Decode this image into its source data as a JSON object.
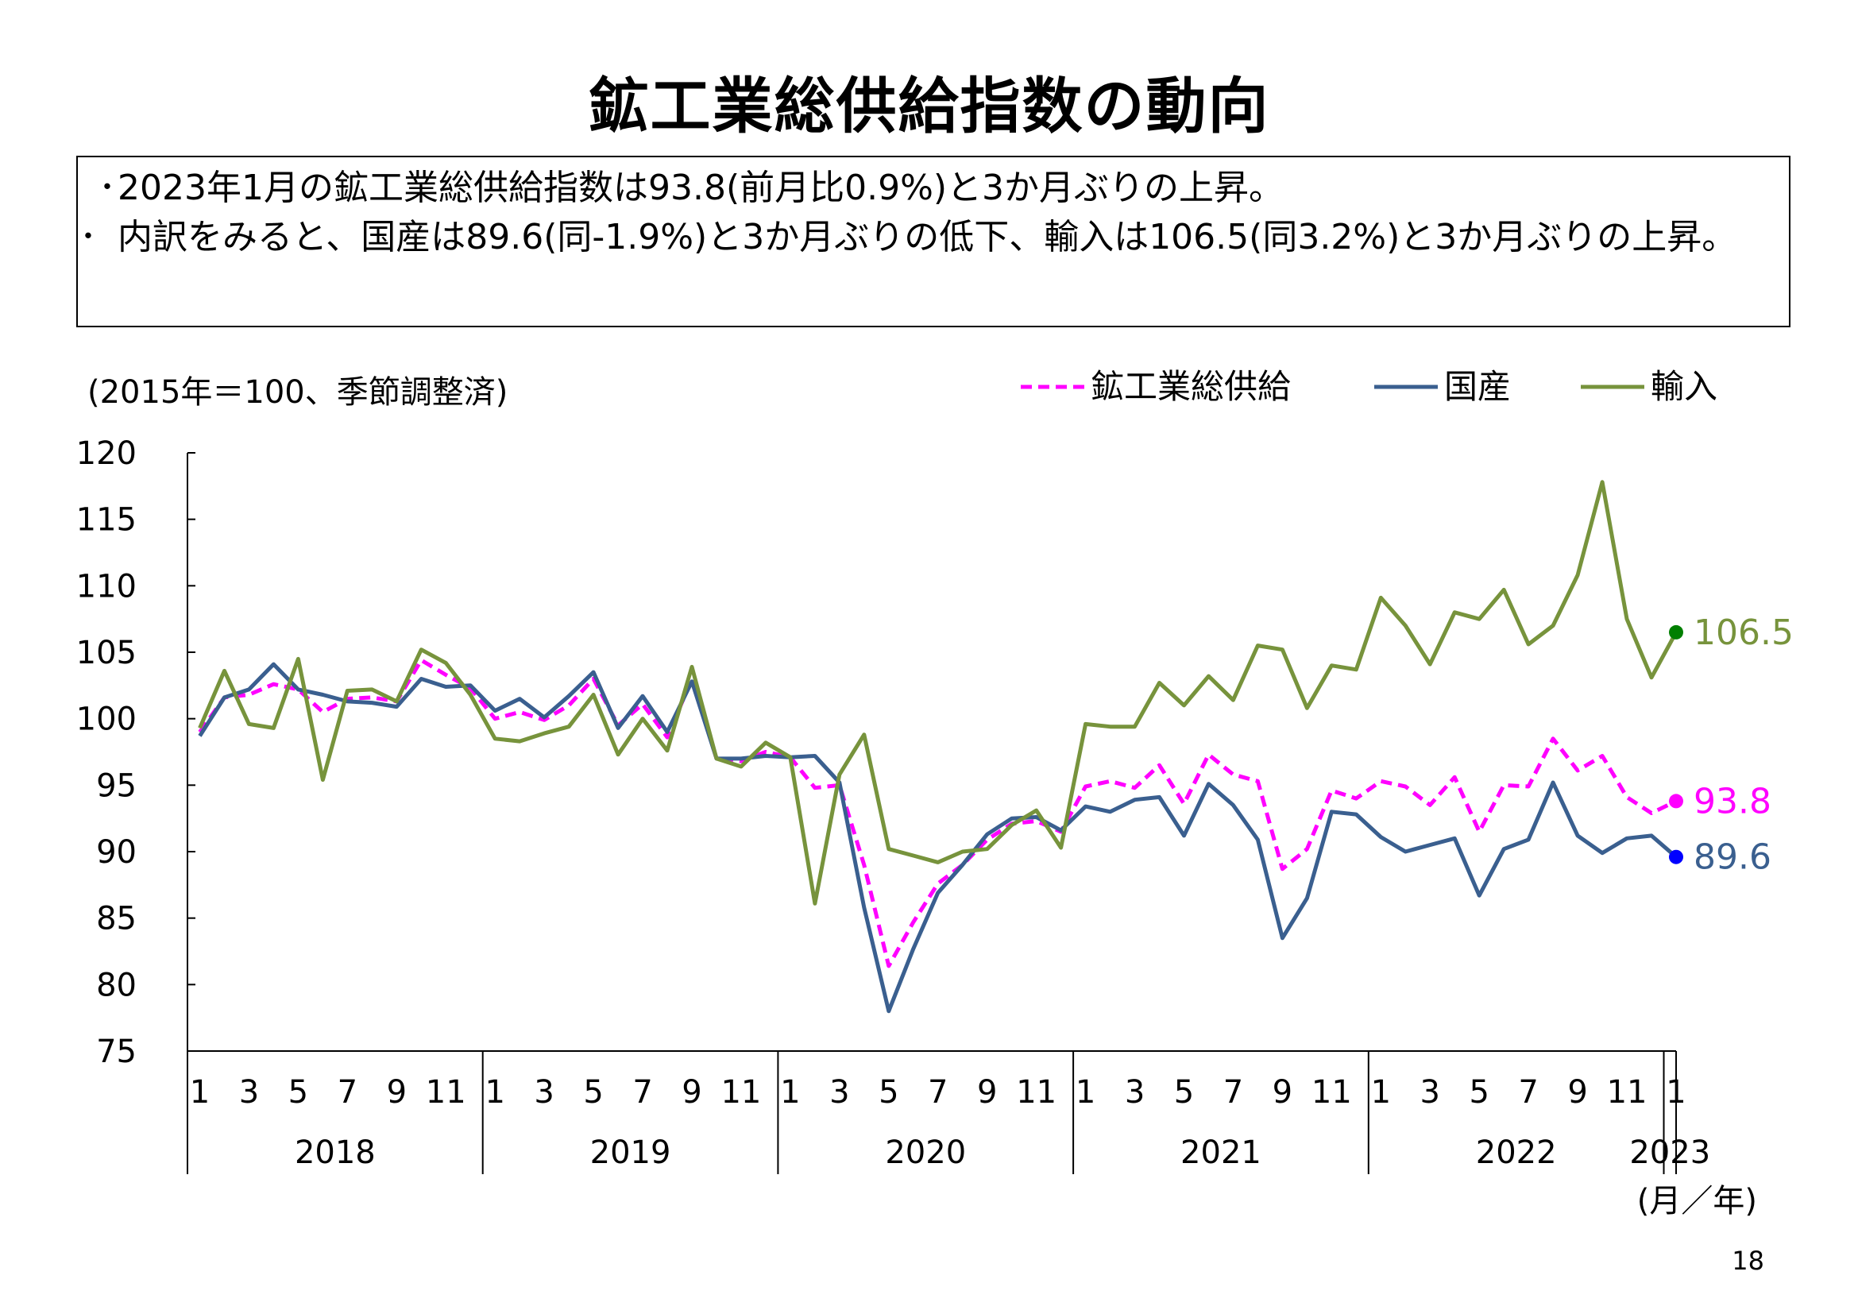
{
  "title": "鉱工業総供給指数の動向",
  "summary": [
    "2023年1月の鉱工業総供給指数は93.8(前月比0.9%)と3か月ぶりの上昇。",
    "内訳をみると、国産は89.6(同-1.9%)と3か月ぶりの低下、輸入は106.5(同3.2%)と3か月ぶりの上昇。"
  ],
  "page_number": "18",
  "chart_data": {
    "type": "line",
    "unit_note": "(2015年＝100、季節調整済)",
    "x_unit_label": "(月／年)",
    "ylim": [
      75,
      120
    ],
    "yticks": [
      75,
      80,
      85,
      90,
      95,
      100,
      105,
      110,
      115,
      120
    ],
    "grid": false,
    "legend_position": "top-right",
    "month_labels": [
      "1",
      "3",
      "5",
      "7",
      "9",
      "11"
    ],
    "years": [
      "2018",
      "2019",
      "2020",
      "2021",
      "2022",
      "2023"
    ],
    "x": [
      "2018-01",
      "2018-02",
      "2018-03",
      "2018-04",
      "2018-05",
      "2018-06",
      "2018-07",
      "2018-08",
      "2018-09",
      "2018-10",
      "2018-11",
      "2018-12",
      "2019-01",
      "2019-02",
      "2019-03",
      "2019-04",
      "2019-05",
      "2019-06",
      "2019-07",
      "2019-08",
      "2019-09",
      "2019-10",
      "2019-11",
      "2019-12",
      "2020-01",
      "2020-02",
      "2020-03",
      "2020-04",
      "2020-05",
      "2020-06",
      "2020-07",
      "2020-08",
      "2020-09",
      "2020-10",
      "2020-11",
      "2020-12",
      "2021-01",
      "2021-02",
      "2021-03",
      "2021-04",
      "2021-05",
      "2021-06",
      "2021-07",
      "2021-08",
      "2021-09",
      "2021-10",
      "2021-11",
      "2021-12",
      "2022-01",
      "2022-02",
      "2022-03",
      "2022-04",
      "2022-05",
      "2022-06",
      "2022-07",
      "2022-08",
      "2022-09",
      "2022-10",
      "2022-11",
      "2022-12",
      "2023-01"
    ],
    "series": [
      {
        "name": "鉱工業総供給",
        "color": "#ff00ff",
        "dash": true,
        "end_label": "93.8",
        "values": [
          99.0,
          101.6,
          101.8,
          102.6,
          102.2,
          100.5,
          101.5,
          101.6,
          101.3,
          104.4,
          103.3,
          102.3,
          100.0,
          100.5,
          99.9,
          101.0,
          103.0,
          99.5,
          101.1,
          98.6,
          103.0,
          97.0,
          96.8,
          97.5,
          97.1,
          94.8,
          95.0,
          89.0,
          81.4,
          84.7,
          87.6,
          89.0,
          90.9,
          92.1,
          92.3,
          91.5,
          94.9,
          95.3,
          94.8,
          96.5,
          93.6,
          97.3,
          95.8,
          95.3,
          88.7,
          90.2,
          94.6,
          94.0,
          95.3,
          94.9,
          93.5,
          95.6,
          91.5,
          95.0,
          94.9,
          98.5,
          96.1,
          97.2,
          94.1,
          92.9,
          93.8
        ]
      },
      {
        "name": "国産",
        "color": "#3a5f8f",
        "dash": false,
        "marker_color": "#0000ff",
        "end_label": "89.6",
        "values": [
          98.7,
          101.6,
          102.2,
          104.1,
          102.2,
          101.8,
          101.3,
          101.2,
          100.9,
          103.0,
          102.4,
          102.5,
          100.6,
          101.5,
          100.1,
          101.7,
          103.5,
          99.3,
          101.7,
          99.0,
          102.8,
          97.0,
          97.0,
          97.2,
          97.1,
          97.2,
          95.2,
          85.8,
          78.0,
          82.7,
          86.9,
          89.0,
          91.3,
          92.5,
          92.6,
          91.6,
          93.4,
          93.0,
          93.9,
          94.1,
          91.2,
          95.1,
          93.5,
          90.9,
          83.5,
          86.5,
          93.0,
          92.8,
          91.1,
          90.0,
          90.5,
          91.0,
          86.7,
          90.2,
          90.9,
          95.2,
          91.2,
          89.9,
          91.0,
          91.2,
          89.6
        ]
      },
      {
        "name": "輸入",
        "color": "#77933c",
        "dash": false,
        "marker_color": "#007f00",
        "end_label": "106.5",
        "values": [
          99.3,
          103.6,
          99.6,
          99.3,
          104.5,
          95.4,
          102.1,
          102.2,
          101.3,
          105.2,
          104.2,
          101.8,
          98.5,
          98.3,
          98.9,
          99.4,
          101.8,
          97.3,
          100.0,
          97.6,
          103.9,
          97.0,
          96.4,
          98.2,
          97.1,
          86.1,
          95.8,
          98.8,
          90.2,
          89.7,
          89.2,
          90.0,
          90.2,
          92.0,
          93.1,
          90.3,
          99.6,
          99.4,
          99.4,
          102.7,
          101.0,
          103.2,
          101.4,
          105.5,
          105.2,
          100.8,
          104.0,
          103.7,
          109.1,
          107.0,
          104.1,
          108.0,
          107.5,
          109.7,
          105.6,
          107.0,
          110.8,
          117.8,
          107.5,
          103.1,
          106.5
        ]
      }
    ]
  }
}
